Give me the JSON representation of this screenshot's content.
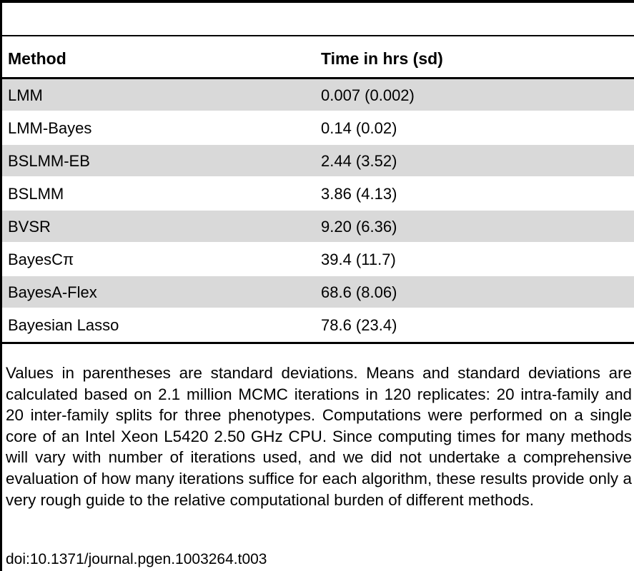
{
  "table": {
    "headers": {
      "method": "Method",
      "time": "Time in hrs (sd)"
    },
    "rows": [
      {
        "method": "LMM",
        "time": "0.007 (0.002)"
      },
      {
        "method": "LMM-Bayes",
        "time": "0.14 (0.02)"
      },
      {
        "method": "BSLMM-EB",
        "time": "2.44 (3.52)"
      },
      {
        "method": "BSLMM",
        "time": "3.86 (4.13)"
      },
      {
        "method": "BVSR",
        "time": "9.20 (6.36)"
      },
      {
        "method": "BayesCπ",
        "time": "39.4 (11.7)"
      },
      {
        "method": "BayesA-Flex",
        "time": "68.6 (8.06)"
      },
      {
        "method": "Bayesian Lasso",
        "time": "78.6 (23.4)"
      }
    ]
  },
  "footnote": "Values in parentheses are standard deviations. Means and standard deviations are calculated based on 2.1 million MCMC iterations in 120 replicates: 20 intra-family and 20 inter-family splits for three phenotypes. Computations were performed on a single core of an Intel Xeon L5420 2.50 GHz CPU. Since computing times for many methods will vary with number of iterations used, and we did not undertake a comprehensive evaluation of how many iterations suffice for each algorithm, these results provide only a very rough guide to the relative computational burden of different methods.",
  "doi": "doi:10.1371/journal.pgen.1003264.t003"
}
